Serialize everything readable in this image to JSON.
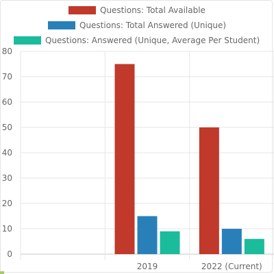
{
  "chart_data": {
    "type": "bar",
    "categories": [
      "",
      "2019",
      "2022 (Current)"
    ],
    "series": [
      {
        "name": "Questions: Total Available",
        "values": [
          null,
          75,
          50
        ],
        "color": "#c0392b"
      },
      {
        "name": "Questions: Total Answered (Unique)",
        "values": [
          null,
          15,
          10
        ],
        "color": "#2980b9"
      },
      {
        "name": "Questions: Answered (Unique, Average Per Student)",
        "values": [
          null,
          9,
          6
        ],
        "color": "#1abc9c"
      }
    ],
    "ylim": [
      0,
      80
    ],
    "yticks": [
      0,
      10,
      20,
      30,
      40,
      50,
      60,
      70,
      80
    ],
    "grid": true,
    "legend_position": "top"
  }
}
